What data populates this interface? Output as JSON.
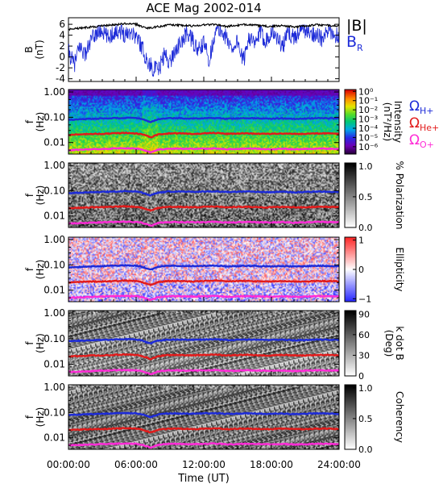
{
  "chart_data": [
    {
      "type": "line",
      "panel": "B",
      "title": "ACE Mag 2002-014",
      "ylabel": "B",
      "yunit": "(nT)",
      "ylim": [
        -4.5,
        7.2
      ],
      "yticks": [
        "6",
        "4",
        "2",
        "0",
        "-2",
        "-4"
      ],
      "ytick_values": [
        6,
        4,
        2,
        0,
        -2,
        -4
      ],
      "xlim": [
        0,
        24
      ],
      "legend": [
        {
          "label": "|B|",
          "color": "#000000"
        },
        {
          "label": "B",
          "sub": "R",
          "color": "#1d2bd8"
        }
      ],
      "series": [
        {
          "name": "|B|",
          "color": "#000000",
          "x": [
            0,
            1,
            2,
            3,
            4,
            5,
            6,
            6.5,
            7,
            7.5,
            8,
            9,
            10,
            11,
            12,
            13,
            14,
            15,
            16,
            17,
            18,
            19,
            20,
            21,
            22,
            23,
            24
          ],
          "y": [
            5.1,
            5.3,
            5.5,
            5.7,
            5.9,
            6.1,
            6.0,
            5.6,
            5.3,
            5.4,
            5.6,
            5.9,
            5.8,
            5.7,
            5.9,
            6.0,
            5.6,
            5.8,
            6.0,
            5.7,
            5.6,
            5.8,
            5.5,
            5.7,
            5.9,
            5.8,
            5.7
          ]
        },
        {
          "name": "BR",
          "color": "#1d2bd8",
          "x": [
            0,
            0.5,
            1,
            1.5,
            2,
            2.5,
            3,
            3.5,
            4,
            4.5,
            5,
            5.5,
            6,
            6.5,
            7,
            7.5,
            8,
            8.5,
            9,
            9.5,
            10,
            10.5,
            11,
            11.5,
            12,
            12.5,
            13,
            13.5,
            14,
            14.5,
            15,
            15.5,
            16,
            16.5,
            17,
            17.5,
            18,
            18.5,
            19,
            19.5,
            20,
            20.5,
            21,
            21.5,
            22,
            22.5,
            23,
            23.5,
            24
          ],
          "y": [
            1.0,
            -1.5,
            2.0,
            0.5,
            3.0,
            4.5,
            4.8,
            3.5,
            4.5,
            5.0,
            4.2,
            4.8,
            3.8,
            2.0,
            -1.0,
            -2.0,
            -2.5,
            0.5,
            -1.0,
            1.5,
            2.5,
            4.5,
            3.0,
            1.0,
            2.5,
            -0.5,
            4.5,
            5.0,
            3.5,
            1.5,
            3.0,
            -1.0,
            4.0,
            2.0,
            4.5,
            3.0,
            4.8,
            3.5,
            2.0,
            4.5,
            3.5,
            4.8,
            5.0,
            4.0,
            4.5,
            3.0,
            4.8,
            4.2,
            3.8
          ]
        }
      ]
    },
    {
      "type": "heatmap",
      "panel": "Intensity",
      "ylabel": "f",
      "yunit": "(Hz)",
      "ytick_labels": [
        "1.00",
        "0.10",
        "0.01"
      ],
      "ytick_values": [
        1.0,
        0.1,
        0.01
      ],
      "ylim": [
        0.0035,
        1.25
      ],
      "yscale": "log",
      "colorbar": {
        "label": "Intensity",
        "unit": "(nT²/Hz)",
        "ticks": [
          "10⁰",
          "10⁻¹",
          "10⁻²",
          "10⁻³",
          "10⁻⁴",
          "10⁻⁵",
          "10⁻⁶"
        ],
        "tick_values": [
          0,
          -1,
          -2,
          -3,
          -4,
          -5,
          -6
        ],
        "range": [
          -6.8,
          0.2
        ],
        "colormap": "rainbow"
      },
      "legend": [
        {
          "label": "Ω",
          "sub": "H+",
          "color": "#1d2bd8"
        },
        {
          "label": "Ω",
          "sub": "He+",
          "color": "#e21b1b"
        },
        {
          "label": "Ω",
          "sub": "O+",
          "color": "#ff2bd6"
        }
      ]
    },
    {
      "type": "heatmap",
      "panel": "Polarization",
      "ylabel": "f",
      "yunit": "(Hz)",
      "ytick_labels": [
        "1.00",
        "0.10",
        "0.01"
      ],
      "ytick_values": [
        1.0,
        0.1,
        0.01
      ],
      "yscale": "log",
      "colorbar": {
        "label": "% Polarization",
        "ticks": [
          "1.0",
          "0.5",
          "0.0"
        ],
        "tick_values": [
          1.0,
          0.5,
          0.0
        ],
        "range": [
          0,
          1.05
        ],
        "colormap": "gray"
      }
    },
    {
      "type": "heatmap",
      "panel": "Ellipticity",
      "ylabel": "f",
      "yunit": "(Hz)",
      "ytick_labels": [
        "1.00",
        "0.10",
        "0.01"
      ],
      "ytick_values": [
        1.0,
        0.1,
        0.01
      ],
      "yscale": "log",
      "colorbar": {
        "label": "Ellipticity",
        "ticks": [
          "1",
          "0",
          "−1"
        ],
        "tick_values": [
          1,
          0,
          -1
        ],
        "range": [
          -1.1,
          1.1
        ],
        "colormap": "bwr"
      }
    },
    {
      "type": "heatmap",
      "panel": "k dot B",
      "ylabel": "f",
      "yunit": "(Hz)",
      "ytick_labels": [
        "1.00",
        "0.10",
        "0.01"
      ],
      "ytick_values": [
        1.0,
        0.1,
        0.01
      ],
      "yscale": "log",
      "colorbar": {
        "label": "k dot B",
        "unit": "(Deg)",
        "ticks": [
          "90",
          "60",
          "30",
          "0"
        ],
        "tick_values": [
          90,
          60,
          30,
          0
        ],
        "range": [
          0,
          95
        ],
        "colormap": "gray"
      }
    },
    {
      "type": "heatmap",
      "panel": "Coherency",
      "ylabel": "f",
      "yunit": "(Hz)",
      "ytick_labels": [
        "1.00",
        "0.10",
        "0.01"
      ],
      "ytick_values": [
        1.0,
        0.1,
        0.01
      ],
      "yscale": "log",
      "colorbar": {
        "label": "Coherency",
        "ticks": [
          "1.0",
          "0.5",
          "0.0"
        ],
        "tick_values": [
          1.0,
          0.5,
          0.0
        ],
        "range": [
          0,
          1.05
        ],
        "colormap": "gray"
      }
    }
  ],
  "xaxis": {
    "label": "Time (UT)",
    "ticks": [
      "00:00:00",
      "06:00:00",
      "12:00:00",
      "18:00:00",
      "24:00:00"
    ],
    "tick_values": [
      0,
      6,
      12,
      18,
      24
    ]
  },
  "cyclotron_lines": {
    "x": [
      0,
      1,
      2,
      3,
      4,
      5,
      6,
      6.5,
      7,
      7.3,
      8,
      9,
      10,
      11,
      12,
      13,
      14,
      15,
      16,
      17,
      18,
      19,
      20,
      21,
      22,
      23,
      24
    ],
    "H+": [
      0.08,
      0.083,
      0.087,
      0.089,
      0.092,
      0.095,
      0.093,
      0.085,
      0.07,
      0.065,
      0.085,
      0.093,
      0.091,
      0.09,
      0.092,
      0.094,
      0.088,
      0.09,
      0.093,
      0.089,
      0.088,
      0.09,
      0.086,
      0.089,
      0.092,
      0.091,
      0.089
    ],
    "He+": [
      0.02,
      0.021,
      0.022,
      0.022,
      0.023,
      0.024,
      0.023,
      0.021,
      0.018,
      0.016,
      0.021,
      0.023,
      0.023,
      0.022,
      0.023,
      0.024,
      0.022,
      0.023,
      0.023,
      0.022,
      0.022,
      0.023,
      0.022,
      0.022,
      0.023,
      0.023,
      0.022
    ],
    "O+": [
      0.005,
      0.0052,
      0.0054,
      0.0056,
      0.0058,
      0.0059,
      0.0058,
      0.0054,
      0.0045,
      0.0041,
      0.0053,
      0.0058,
      0.0057,
      0.0056,
      0.0057,
      0.0059,
      0.0055,
      0.0056,
      0.0058,
      0.0056,
      0.0055,
      0.0057,
      0.0054,
      0.0056,
      0.0058,
      0.0057,
      0.0056
    ],
    "colors": {
      "H+": "#1d2bd8",
      "He+": "#e21b1b",
      "O+": "#ff2bd6"
    }
  }
}
